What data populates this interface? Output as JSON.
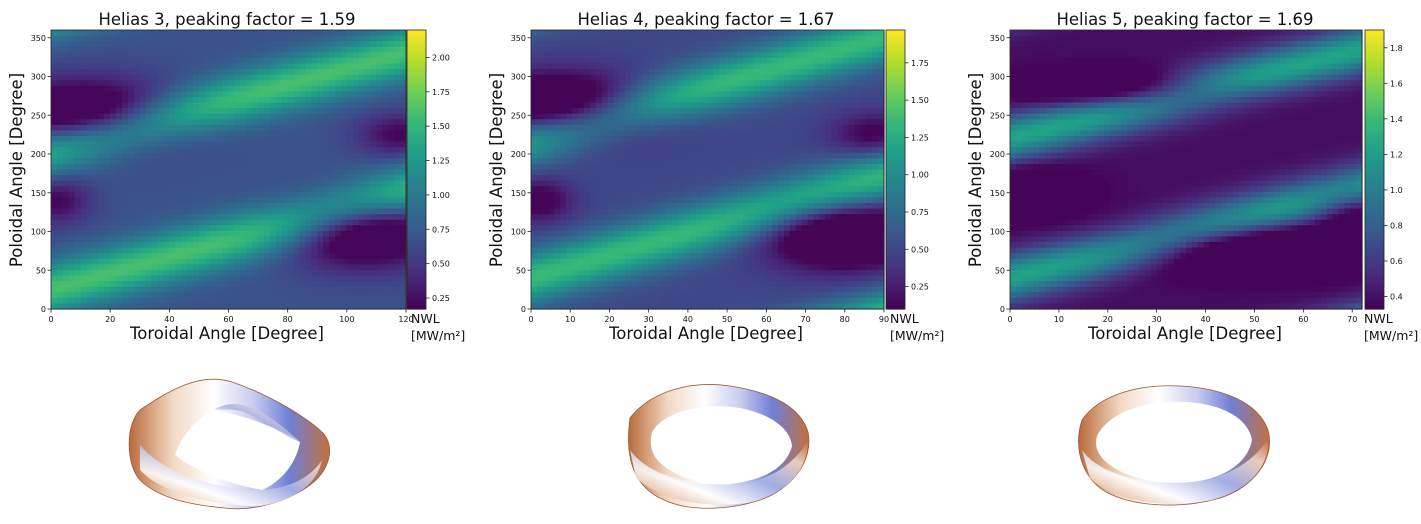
{
  "colors": {
    "colormap": "viridis",
    "colormap_stops": [
      "#440154",
      "#482878",
      "#3e4989",
      "#31688e",
      "#26828e",
      "#1f9e89",
      "#35b779",
      "#6ece58",
      "#b5de2b",
      "#fde725"
    ],
    "torus_surface": [
      "#c2703f",
      "#f4e3d6",
      "#ffffff",
      "#c9cdf0",
      "#4f5fc8"
    ]
  },
  "chart_data": [
    {
      "type": "heatmap",
      "title": "Helias 3, peaking factor = 1.59",
      "xlabel": "Toroidal Angle [Degree]",
      "ylabel": "Poloidal Angle [Degree]",
      "xlim": [
        0,
        120
      ],
      "ylim": [
        0,
        360
      ],
      "xticks": [
        0,
        20,
        40,
        60,
        80,
        100,
        120
      ],
      "yticks": [
        0,
        50,
        100,
        150,
        200,
        250,
        300,
        350
      ],
      "colorbar": {
        "label": "NWL",
        "unit": "[MW/m²]",
        "range": [
          0.17,
          2.2
        ],
        "ticks": [
          0.25,
          0.5,
          0.75,
          1.0,
          1.25,
          1.5,
          1.75,
          2.0
        ],
        "tick_labels": [
          "0.25",
          "0.50",
          "0.75",
          "1.00",
          "1.25",
          "1.50",
          "1.75",
          "2.00"
        ]
      },
      "field": {
        "base": 1.18,
        "bands": [
          {
            "y0": 25,
            "slope": 1.05,
            "width": 24,
            "amp": 0.92
          },
          {
            "y0": 205,
            "slope": 1.05,
            "width": 24,
            "amp": 0.92
          },
          {
            "y0": 385,
            "slope": 1.05,
            "width": 24,
            "amp": 0.92
          }
        ],
        "spots": [
          {
            "x": 12,
            "y": 250,
            "sx": 22,
            "sy": 32,
            "amp": -0.95
          },
          {
            "x": 106,
            "y": 100,
            "sx": 18,
            "sy": 32,
            "amp": -0.95
          },
          {
            "x": 2,
            "y": 140,
            "sx": 8,
            "sy": 22,
            "amp": -0.5
          },
          {
            "x": 118,
            "y": 225,
            "sx": 10,
            "sy": 20,
            "amp": -0.5
          }
        ],
        "min": 0.2,
        "max": 2.17
      }
    },
    {
      "type": "heatmap",
      "title": "Helias 4, peaking factor = 1.67",
      "xlabel": "Toroidal Angle [Degree]",
      "ylabel": "Poloidal Angle [Degree]",
      "xlim": [
        0,
        90
      ],
      "ylim": [
        0,
        360
      ],
      "xticks": [
        0,
        10,
        20,
        30,
        40,
        50,
        60,
        70,
        80,
        90
      ],
      "yticks": [
        0,
        50,
        100,
        150,
        200,
        250,
        300,
        350
      ],
      "colorbar": {
        "label": "NWL",
        "unit": "[MW/m²]",
        "range": [
          0.1,
          1.97
        ],
        "ticks": [
          0.25,
          0.5,
          0.75,
          1.0,
          1.25,
          1.5,
          1.75
        ],
        "tick_labels": [
          "0.25",
          "0.50",
          "0.75",
          "1.00",
          "1.25",
          "1.50",
          "1.75"
        ]
      },
      "field": {
        "base": 1.12,
        "bands": [
          {
            "y0": 40,
            "slope": 1.45,
            "width": 24,
            "amp": 0.85
          },
          {
            "y0": 220,
            "slope": 1.45,
            "width": 24,
            "amp": 0.85
          },
          {
            "y0": 400,
            "slope": 1.45,
            "width": 24,
            "amp": 0.85
          },
          {
            "y0": -140,
            "slope": 1.45,
            "width": 24,
            "amp": 0.85
          }
        ],
        "spots": [
          {
            "x": 8,
            "y": 260,
            "sx": 16,
            "sy": 30,
            "amp": -0.95
          },
          {
            "x": 80,
            "y": 95,
            "sx": 14,
            "sy": 30,
            "amp": -0.95
          },
          {
            "x": 2,
            "y": 140,
            "sx": 6,
            "sy": 20,
            "amp": -0.5
          },
          {
            "x": 88,
            "y": 225,
            "sx": 8,
            "sy": 20,
            "amp": -0.45
          }
        ],
        "min": 0.12,
        "max": 1.95
      }
    },
    {
      "type": "heatmap",
      "title": "Helias 5, peaking factor = 1.69",
      "xlabel": "Toroidal Angle [Degree]",
      "ylabel": "Poloidal Angle [Degree]",
      "xlim": [
        0,
        72
      ],
      "ylim": [
        0,
        360
      ],
      "xticks": [
        0,
        10,
        20,
        30,
        40,
        50,
        60,
        70
      ],
      "yticks": [
        0,
        50,
        100,
        150,
        200,
        250,
        300,
        350
      ],
      "colorbar": {
        "label": "NWL",
        "unit": "[MW/m²]",
        "range": [
          0.33,
          1.9
        ],
        "ticks": [
          0.4,
          0.6,
          0.8,
          1.0,
          1.2,
          1.4,
          1.6,
          1.8
        ],
        "tick_labels": [
          "0.4",
          "0.6",
          "0.8",
          "1.0",
          "1.2",
          "1.4",
          "1.6",
          "1.8"
        ]
      },
      "field": {
        "base": 1.0,
        "bands": [
          {
            "y0": 40,
            "slope": 1.6,
            "width": 22,
            "amp": 0.85
          },
          {
            "y0": 220,
            "slope": 1.6,
            "width": 22,
            "amp": 0.85
          },
          {
            "y0": 400,
            "slope": 1.6,
            "width": 22,
            "amp": 0.85
          },
          {
            "y0": -140,
            "slope": 1.6,
            "width": 22,
            "amp": 0.85
          }
        ],
        "spots": [
          {
            "x": 25,
            "y": 282,
            "sx": 14,
            "sy": 18,
            "amp": -0.55
          },
          {
            "x": 2,
            "y": 150,
            "sx": 8,
            "sy": 20,
            "amp": -0.55
          },
          {
            "x": 50,
            "y": 80,
            "sx": 18,
            "sy": 24,
            "amp": -0.6
          },
          {
            "x": 70,
            "y": 130,
            "sx": 6,
            "sy": 20,
            "amp": -0.4
          }
        ],
        "min": 0.35,
        "max": 1.88
      }
    }
  ]
}
